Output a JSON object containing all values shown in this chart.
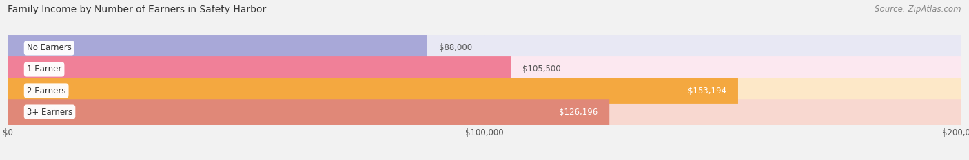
{
  "title": "Family Income by Number of Earners in Safety Harbor",
  "source": "Source: ZipAtlas.com",
  "categories": [
    "No Earners",
    "1 Earner",
    "2 Earners",
    "3+ Earners"
  ],
  "values": [
    88000,
    105500,
    153194,
    126196
  ],
  "labels": [
    "$88,000",
    "$105,500",
    "$153,194",
    "$126,196"
  ],
  "bar_colors": [
    "#a8a8d8",
    "#f08098",
    "#f4a840",
    "#e08878"
  ],
  "bar_bg_colors": [
    "#e8e8f4",
    "#fce8f0",
    "#fde8c8",
    "#f8d8d0"
  ],
  "label_dark": "#555555",
  "label_light": "#ffffff",
  "label_inside": [
    false,
    false,
    true,
    true
  ],
  "xlim": [
    0,
    200000
  ],
  "xtick_values": [
    0,
    100000,
    200000
  ],
  "xtick_labels": [
    "$0",
    "$100,000",
    "$200,000"
  ],
  "background_color": "#f2f2f2",
  "bar_height": 0.62,
  "title_fontsize": 10,
  "source_fontsize": 8.5,
  "label_fontsize": 8.5,
  "tick_fontsize": 8.5,
  "category_fontsize": 8.5,
  "grid_color": "#dddddd"
}
